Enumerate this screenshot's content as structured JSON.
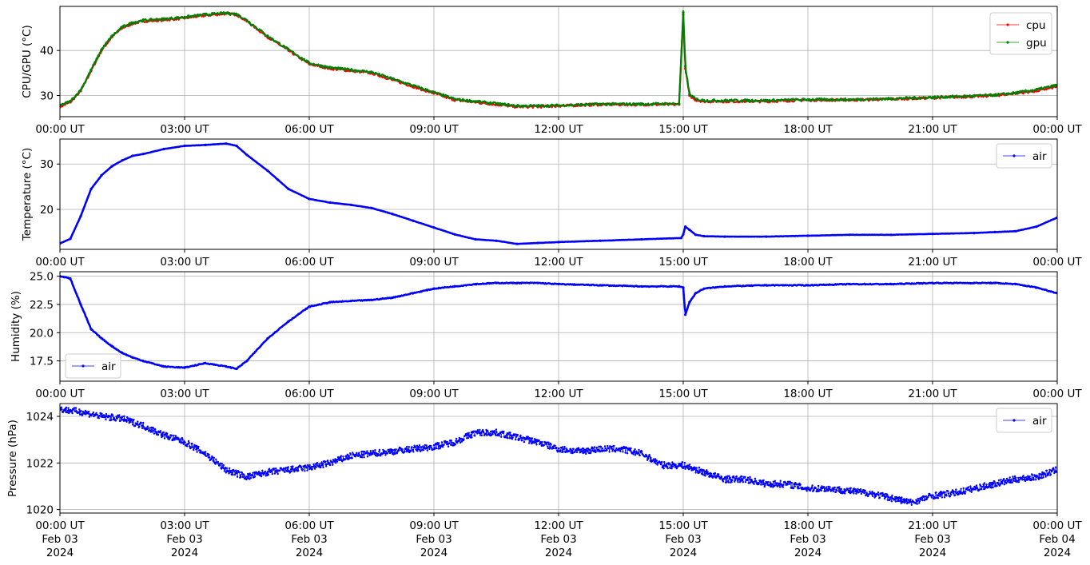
{
  "chart_data": [
    {
      "type": "line",
      "ylabel": "CPU/GPU (°C)",
      "xlabel": "",
      "x_range": [
        "2024-02-03 00:00",
        "2024-02-04 00:00"
      ],
      "ylim": [
        25.3,
        49.8
      ],
      "yticks": [
        30,
        40
      ],
      "grid": true,
      "legend": "top-right",
      "x": [
        0,
        0.25,
        0.5,
        0.75,
        1,
        1.25,
        1.5,
        1.75,
        2,
        2.5,
        3,
        3.5,
        4,
        4.25,
        4.5,
        5,
        5.5,
        6,
        6.5,
        7,
        7.5,
        8,
        8.5,
        9,
        9.5,
        10,
        10.5,
        11,
        11.5,
        12,
        13,
        14,
        14.9,
        15,
        15.05,
        15.15,
        15.3,
        15.5,
        16,
        17,
        18,
        19,
        20,
        21,
        22,
        22.5,
        23,
        23.5,
        24
      ],
      "series": [
        {
          "name": "cpu",
          "color": "#ff0000",
          "values": [
            27.5,
            28.5,
            31,
            35.5,
            40,
            43,
            45,
            46,
            46.5,
            46.8,
            47.2,
            47.8,
            48.2,
            48,
            46.5,
            43,
            40,
            37,
            36,
            35.5,
            35,
            33.5,
            32,
            30.5,
            29,
            28.5,
            28,
            27.5,
            27.5,
            27.7,
            28,
            28,
            28,
            48,
            36,
            30,
            29,
            28.7,
            28.7,
            28.7,
            29,
            29,
            29.2,
            29.5,
            29.8,
            30,
            30.5,
            31,
            32
          ]
        },
        {
          "name": "gpu",
          "color": "#008000",
          "values": [
            27.8,
            28.7,
            31.2,
            35.7,
            40.2,
            43.2,
            45.2,
            46.2,
            46.7,
            47,
            47.4,
            48,
            48.3,
            48.1,
            46.7,
            43.2,
            40.2,
            37.2,
            36.2,
            35.7,
            35.2,
            33.7,
            32.2,
            30.7,
            29.2,
            28.7,
            28.2,
            27.7,
            27.7,
            27.8,
            28.1,
            28.1,
            28.2,
            48.5,
            36.5,
            30.3,
            29.2,
            28.9,
            28.9,
            28.9,
            29.1,
            29.1,
            29.3,
            29.6,
            29.9,
            30.1,
            30.6,
            31.3,
            32.3
          ]
        }
      ]
    },
    {
      "type": "line",
      "ylabel": "Temperature (°C)",
      "xlabel": "",
      "x_range": [
        "2024-02-03 00:00",
        "2024-02-04 00:00"
      ],
      "ylim": [
        11.2,
        35.5
      ],
      "yticks": [
        20,
        30
      ],
      "grid": true,
      "legend": "top-right",
      "x": [
        0,
        0.25,
        0.5,
        0.75,
        1,
        1.25,
        1.5,
        1.75,
        2,
        2.5,
        3,
        3.5,
        4,
        4.25,
        4.5,
        5,
        5.25,
        5.5,
        6,
        6.5,
        7,
        7.5,
        8,
        8.5,
        9,
        9.5,
        10,
        10.5,
        11,
        11.5,
        12,
        13,
        14,
        14.95,
        15,
        15.05,
        15.15,
        15.3,
        15.5,
        16,
        17,
        18,
        19,
        20,
        21,
        22,
        22.5,
        23,
        23.5,
        24
      ],
      "series": [
        {
          "name": "air",
          "color": "#0000ff",
          "values": [
            12.5,
            13.5,
            18.5,
            24.5,
            27.5,
            29.5,
            30.8,
            31.8,
            32.2,
            33.3,
            34,
            34.2,
            34.5,
            34,
            32,
            28.5,
            26.5,
            24.5,
            22.3,
            21.5,
            21,
            20.3,
            19,
            17.5,
            16,
            14.5,
            13.4,
            13.1,
            12.4,
            12.6,
            12.8,
            13.1,
            13.4,
            13.7,
            14.5,
            16.2,
            15.5,
            14.4,
            14.1,
            14,
            14,
            14.2,
            14.4,
            14.4,
            14.6,
            14.8,
            15,
            15.2,
            16.2,
            18.2
          ]
        }
      ]
    },
    {
      "type": "line",
      "ylabel": "Humidity (%)",
      "xlabel": "",
      "x_range": [
        "2024-02-03 00:00",
        "2024-02-04 00:00"
      ],
      "ylim": [
        15.7,
        25.4
      ],
      "yticks": [
        17.5,
        20.0,
        22.5,
        25.0
      ],
      "ytick_labels": [
        "17.5",
        "20.0",
        "22.5",
        "25.0"
      ],
      "grid": true,
      "legend": "bottom-left",
      "x": [
        0,
        0.25,
        0.5,
        0.75,
        1,
        1.25,
        1.5,
        1.75,
        2,
        2.5,
        3,
        3.5,
        4,
        4.25,
        4.5,
        5,
        5.5,
        6,
        6.5,
        7,
        7.5,
        8,
        8.5,
        9,
        9.5,
        10,
        10.5,
        11,
        11.5,
        12,
        13,
        14,
        14.9,
        15,
        15.05,
        15.15,
        15.3,
        15.5,
        16,
        17,
        18,
        19,
        20,
        21,
        22,
        22.5,
        23,
        23.5,
        24
      ],
      "series": [
        {
          "name": "air",
          "color": "#0000ff",
          "values": [
            25,
            24.8,
            22.5,
            20.3,
            19.5,
            18.8,
            18.2,
            17.8,
            17.5,
            17,
            16.9,
            17.3,
            17,
            16.8,
            17.5,
            19.5,
            21,
            22.3,
            22.7,
            22.8,
            22.9,
            23.1,
            23.5,
            23.9,
            24.1,
            24.3,
            24.4,
            24.4,
            24.4,
            24.3,
            24.2,
            24.1,
            24.1,
            24,
            21.6,
            22.7,
            23.5,
            23.9,
            24.1,
            24.2,
            24.2,
            24.3,
            24.3,
            24.4,
            24.4,
            24.4,
            24.3,
            24,
            23.5
          ]
        }
      ]
    },
    {
      "type": "scatter",
      "ylabel": "Pressure (hPa)",
      "xlabel": "",
      "x_range": [
        "2024-02-03 00:00",
        "2024-02-04 00:00"
      ],
      "ylim": [
        1019.85,
        1024.55
      ],
      "yticks": [
        1020,
        1022,
        1024
      ],
      "grid": true,
      "legend": "top-right",
      "x": [
        0,
        0.5,
        1,
        1.5,
        2,
        2.5,
        3,
        3.5,
        4,
        4.5,
        5,
        5.5,
        6,
        6.5,
        7,
        7.5,
        8,
        8.5,
        9,
        9.5,
        10,
        10.5,
        11,
        11.5,
        12,
        12.5,
        13,
        13.5,
        14,
        14.5,
        15,
        15.5,
        16,
        16.5,
        17,
        17.5,
        18,
        18.5,
        19,
        19.5,
        20,
        20.5,
        21,
        21.5,
        22,
        22.5,
        23,
        23.5,
        24
      ],
      "series": [
        {
          "name": "air",
          "color": "#0000ff",
          "values": [
            1024.3,
            1024.2,
            1024,
            1023.9,
            1023.6,
            1023.2,
            1022.9,
            1022.4,
            1021.7,
            1021.4,
            1021.6,
            1021.7,
            1021.8,
            1022,
            1022.3,
            1022.4,
            1022.5,
            1022.6,
            1022.7,
            1022.9,
            1023.3,
            1023.3,
            1023.1,
            1022.9,
            1022.6,
            1022.5,
            1022.6,
            1022.6,
            1022.4,
            1021.9,
            1021.9,
            1021.6,
            1021.3,
            1021.3,
            1021.1,
            1021.1,
            1020.9,
            1020.9,
            1020.8,
            1020.7,
            1020.5,
            1020.3,
            1020.6,
            1020.7,
            1020.9,
            1021.1,
            1021.3,
            1021.4,
            1021.7
          ]
        }
      ]
    }
  ],
  "x_axis": {
    "time_labels": [
      "00:00 UT",
      "03:00 UT",
      "06:00 UT",
      "09:00 UT",
      "12:00 UT",
      "15:00 UT",
      "18:00 UT",
      "21:00 UT",
      "00:00 UT"
    ],
    "date_labels": [
      "Feb 03",
      "Feb 03",
      "Feb 03",
      "Feb 03",
      "Feb 03",
      "Feb 03",
      "Feb 03",
      "Feb 03",
      "Feb 04"
    ],
    "year_labels": [
      "2024",
      "2024",
      "2024",
      "2024",
      "2024",
      "2024",
      "2024",
      "2024",
      "2024"
    ]
  }
}
